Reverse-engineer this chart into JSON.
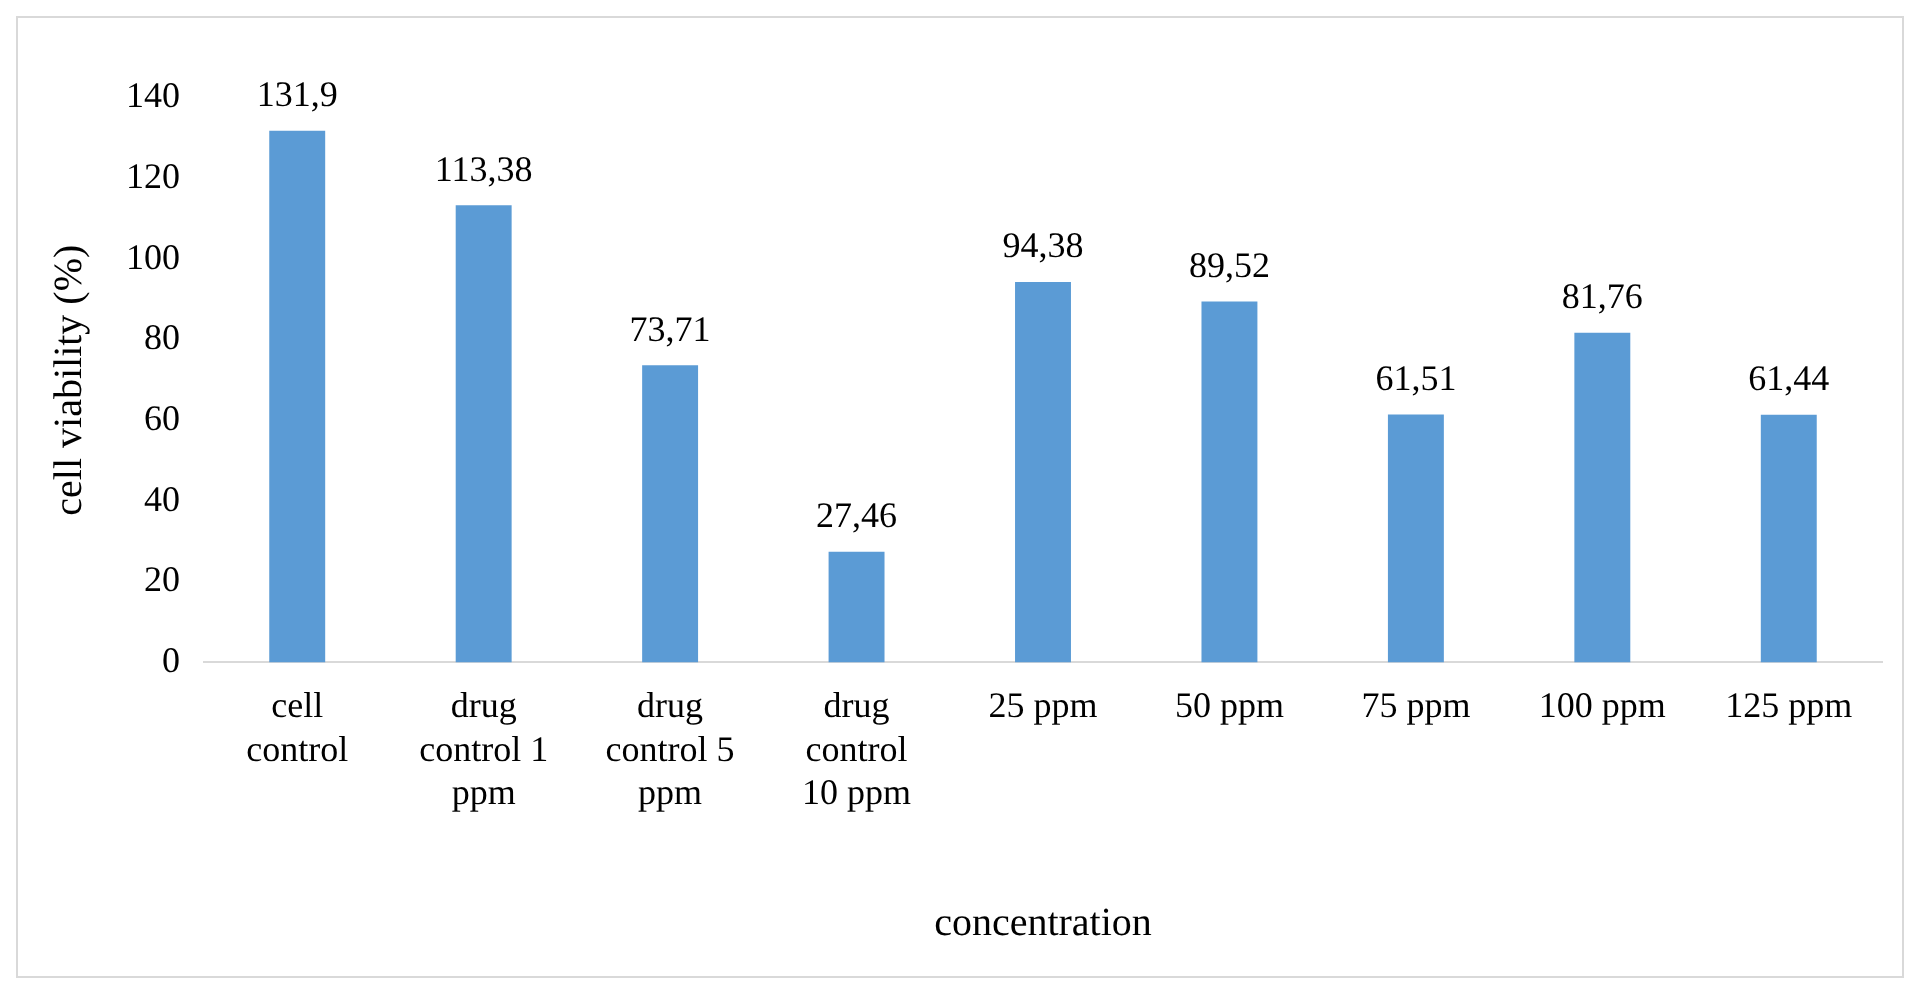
{
  "chart_data": {
    "type": "bar",
    "xlabel": "concentration",
    "ylabel": "cell viability (%)",
    "categories": [
      "cell control",
      "drug control 1 ppm",
      "drug control 5 ppm",
      "drug control 10 ppm",
      "25 ppm",
      "50 ppm",
      "75 ppm",
      "100 ppm",
      "125 ppm"
    ],
    "values": [
      131.9,
      113.38,
      73.71,
      27.46,
      94.38,
      89.52,
      61.51,
      81.76,
      61.44
    ],
    "value_labels": [
      "131,9",
      "113,38",
      "73,71",
      "27,46",
      "94,38",
      "89,52",
      "61,51",
      "81,76",
      "61,44"
    ],
    "color": "#5b9bd5",
    "ylim": [
      0,
      140
    ],
    "yticks": [
      0,
      20,
      40,
      60,
      80,
      100,
      120,
      140
    ]
  }
}
